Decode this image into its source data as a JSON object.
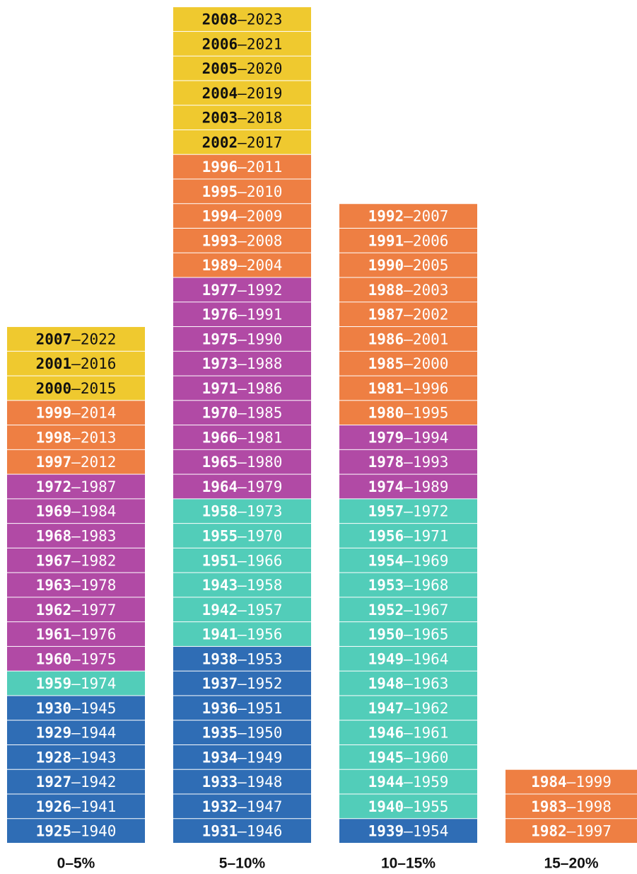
{
  "chart_data": {
    "type": "unit-stack",
    "separator": "–",
    "columns": [
      {
        "label": "0–5%",
        "groups": [
          {
            "color": "#efc92f",
            "text_color": "#111111",
            "cells": [
              [
                "2007",
                "2022"
              ],
              [
                "2001",
                "2016"
              ],
              [
                "2000",
                "2015"
              ]
            ]
          },
          {
            "color": "#ee7f43",
            "text_color": "#ffffff",
            "cells": [
              [
                "1999",
                "2014"
              ],
              [
                "1998",
                "2013"
              ],
              [
                "1997",
                "2012"
              ]
            ]
          },
          {
            "color": "#b14aa5",
            "text_color": "#ffffff",
            "cells": [
              [
                "1972",
                "1987"
              ],
              [
                "1969",
                "1984"
              ],
              [
                "1968",
                "1983"
              ],
              [
                "1967",
                "1982"
              ],
              [
                "1963",
                "1978"
              ],
              [
                "1962",
                "1977"
              ],
              [
                "1961",
                "1976"
              ],
              [
                "1960",
                "1975"
              ]
            ]
          },
          {
            "color": "#52cdb9",
            "text_color": "#ffffff",
            "cells": [
              [
                "1959",
                "1974"
              ]
            ]
          },
          {
            "color": "#2f6db5",
            "text_color": "#ffffff",
            "cells": [
              [
                "1930",
                "1945"
              ],
              [
                "1929",
                "1944"
              ],
              [
                "1928",
                "1943"
              ],
              [
                "1927",
                "1942"
              ],
              [
                "1926",
                "1941"
              ],
              [
                "1925",
                "1940"
              ]
            ]
          }
        ]
      },
      {
        "label": "5–10%",
        "groups": [
          {
            "color": "#efc92f",
            "text_color": "#111111",
            "cells": [
              [
                "2008",
                "2023"
              ],
              [
                "2006",
                "2021"
              ],
              [
                "2005",
                "2020"
              ],
              [
                "2004",
                "2019"
              ],
              [
                "2003",
                "2018"
              ],
              [
                "2002",
                "2017"
              ]
            ]
          },
          {
            "color": "#ee7f43",
            "text_color": "#ffffff",
            "cells": [
              [
                "1996",
                "2011"
              ],
              [
                "1995",
                "2010"
              ],
              [
                "1994",
                "2009"
              ],
              [
                "1993",
                "2008"
              ],
              [
                "1989",
                "2004"
              ]
            ]
          },
          {
            "color": "#b14aa5",
            "text_color": "#ffffff",
            "cells": [
              [
                "1977",
                "1992"
              ],
              [
                "1976",
                "1991"
              ],
              [
                "1975",
                "1990"
              ],
              [
                "1973",
                "1988"
              ],
              [
                "1971",
                "1986"
              ],
              [
                "1970",
                "1985"
              ],
              [
                "1966",
                "1981"
              ],
              [
                "1965",
                "1980"
              ],
              [
                "1964",
                "1979"
              ]
            ]
          },
          {
            "color": "#52cdb9",
            "text_color": "#ffffff",
            "cells": [
              [
                "1958",
                "1973"
              ],
              [
                "1955",
                "1970"
              ],
              [
                "1951",
                "1966"
              ],
              [
                "1943",
                "1958"
              ],
              [
                "1942",
                "1957"
              ],
              [
                "1941",
                "1956"
              ]
            ]
          },
          {
            "color": "#2f6db5",
            "text_color": "#ffffff",
            "cells": [
              [
                "1938",
                "1953"
              ],
              [
                "1937",
                "1952"
              ],
              [
                "1936",
                "1951"
              ],
              [
                "1935",
                "1950"
              ],
              [
                "1934",
                "1949"
              ],
              [
                "1933",
                "1948"
              ],
              [
                "1932",
                "1947"
              ],
              [
                "1931",
                "1946"
              ]
            ]
          }
        ]
      },
      {
        "label": "10–15%",
        "groups": [
          {
            "color": "#ee7f43",
            "text_color": "#ffffff",
            "cells": [
              [
                "1992",
                "2007"
              ],
              [
                "1991",
                "2006"
              ],
              [
                "1990",
                "2005"
              ],
              [
                "1988",
                "2003"
              ],
              [
                "1987",
                "2002"
              ],
              [
                "1986",
                "2001"
              ],
              [
                "1985",
                "2000"
              ],
              [
                "1981",
                "1996"
              ],
              [
                "1980",
                "1995"
              ]
            ]
          },
          {
            "color": "#b14aa5",
            "text_color": "#ffffff",
            "cells": [
              [
                "1979",
                "1994"
              ],
              [
                "1978",
                "1993"
              ],
              [
                "1974",
                "1989"
              ]
            ]
          },
          {
            "color": "#52cdb9",
            "text_color": "#ffffff",
            "cells": [
              [
                "1957",
                "1972"
              ],
              [
                "1956",
                "1971"
              ],
              [
                "1954",
                "1969"
              ],
              [
                "1953",
                "1968"
              ],
              [
                "1952",
                "1967"
              ],
              [
                "1950",
                "1965"
              ],
              [
                "1949",
                "1964"
              ],
              [
                "1948",
                "1963"
              ],
              [
                "1947",
                "1962"
              ],
              [
                "1946",
                "1961"
              ],
              [
                "1945",
                "1960"
              ],
              [
                "1944",
                "1959"
              ],
              [
                "1940",
                "1955"
              ]
            ]
          },
          {
            "color": "#2f6db5",
            "text_color": "#ffffff",
            "cells": [
              [
                "1939",
                "1954"
              ]
            ]
          }
        ]
      },
      {
        "label": "15–20%",
        "groups": [
          {
            "color": "#ee7f43",
            "text_color": "#ffffff",
            "cells": [
              [
                "1984",
                "1999"
              ],
              [
                "1983",
                "1998"
              ],
              [
                "1982",
                "1997"
              ]
            ]
          }
        ]
      }
    ]
  }
}
